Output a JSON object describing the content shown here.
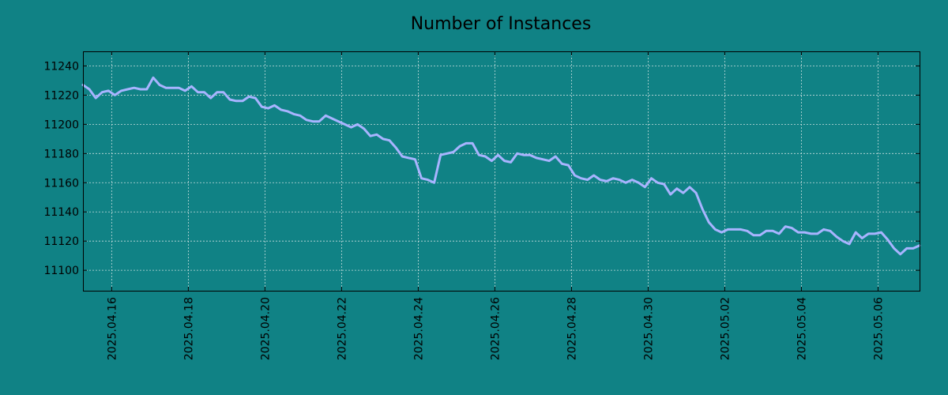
{
  "chart_data": {
    "type": "line",
    "title": "Number of Instances",
    "xlabel": "",
    "ylabel": "",
    "x_tick_labels": [
      "2025.04.16",
      "2025.04.18",
      "2025.04.20",
      "2025.04.22",
      "2025.04.24",
      "2025.04.26",
      "2025.04.28",
      "2025.04.30",
      "2025.05.02",
      "2025.05.04",
      "2025.05.06"
    ],
    "y_tick_labels": [
      "11100",
      "11120",
      "11140",
      "11160",
      "11180",
      "11200",
      "11220",
      "11240"
    ],
    "xlim": [
      "2025-04-15T06:00",
      "2025-05-07T02:00"
    ],
    "ylim": [
      11086,
      11250
    ],
    "grid": true,
    "colors": {
      "background": "#108285",
      "line": "#a8b4ff"
    },
    "series": [
      {
        "x": [
          "2025-04-15T06:00",
          "2025-04-15T10:00",
          "2025-04-15T14:00",
          "2025-04-15T18:00",
          "2025-04-15T22:00",
          "2025-04-16T02:00",
          "2025-04-16T06:00",
          "2025-04-16T10:00",
          "2025-04-16T14:00",
          "2025-04-16T18:00",
          "2025-04-16T22:00",
          "2025-04-17T02:00",
          "2025-04-17T06:00",
          "2025-04-17T10:00",
          "2025-04-17T14:00",
          "2025-04-17T18:00",
          "2025-04-17T22:00",
          "2025-04-18T02:00",
          "2025-04-18T06:00",
          "2025-04-18T10:00",
          "2025-04-18T14:00",
          "2025-04-18T18:00",
          "2025-04-18T22:00",
          "2025-04-19T02:00",
          "2025-04-19T06:00",
          "2025-04-19T10:00",
          "2025-04-19T14:00",
          "2025-04-19T18:00",
          "2025-04-19T22:00",
          "2025-04-20T02:00",
          "2025-04-20T06:00",
          "2025-04-20T10:00",
          "2025-04-20T14:00",
          "2025-04-20T18:00",
          "2025-04-20T22:00",
          "2025-04-21T02:00",
          "2025-04-21T06:00",
          "2025-04-21T10:00",
          "2025-04-21T14:00",
          "2025-04-21T18:00",
          "2025-04-21T22:00",
          "2025-04-22T02:00",
          "2025-04-22T06:00",
          "2025-04-22T10:00",
          "2025-04-22T14:00",
          "2025-04-22T18:00",
          "2025-04-22T22:00",
          "2025-04-23T02:00",
          "2025-04-23T06:00",
          "2025-04-23T10:00",
          "2025-04-23T14:00",
          "2025-04-23T18:00",
          "2025-04-23T22:00",
          "2025-04-24T02:00",
          "2025-04-24T06:00",
          "2025-04-24T10:00",
          "2025-04-24T14:00",
          "2025-04-24T18:00",
          "2025-04-24T22:00",
          "2025-04-25T02:00",
          "2025-04-25T06:00",
          "2025-04-25T10:00",
          "2025-04-25T14:00",
          "2025-04-25T18:00",
          "2025-04-25T22:00",
          "2025-04-26T02:00",
          "2025-04-26T06:00",
          "2025-04-26T10:00",
          "2025-04-26T14:00",
          "2025-04-26T18:00",
          "2025-04-26T22:00",
          "2025-04-27T02:00",
          "2025-04-27T06:00",
          "2025-04-27T10:00",
          "2025-04-27T14:00",
          "2025-04-27T18:00",
          "2025-04-27T22:00",
          "2025-04-28T02:00",
          "2025-04-28T06:00",
          "2025-04-28T10:00",
          "2025-04-28T14:00",
          "2025-04-28T18:00",
          "2025-04-28T22:00",
          "2025-04-29T02:00",
          "2025-04-29T06:00",
          "2025-04-29T10:00",
          "2025-04-29T14:00",
          "2025-04-29T18:00",
          "2025-04-29T22:00",
          "2025-04-30T02:00",
          "2025-04-30T06:00",
          "2025-04-30T10:00",
          "2025-04-30T14:00",
          "2025-04-30T18:00",
          "2025-04-30T22:00",
          "2025-05-01T02:00",
          "2025-05-01T06:00",
          "2025-05-01T10:00",
          "2025-05-01T14:00",
          "2025-05-01T18:00",
          "2025-05-01T22:00",
          "2025-05-02T02:00",
          "2025-05-02T06:00",
          "2025-05-02T10:00",
          "2025-05-02T14:00",
          "2025-05-02T18:00",
          "2025-05-02T22:00",
          "2025-05-03T02:00",
          "2025-05-03T06:00",
          "2025-05-03T10:00",
          "2025-05-03T14:00",
          "2025-05-03T18:00",
          "2025-05-03T22:00",
          "2025-05-04T02:00",
          "2025-05-04T06:00",
          "2025-05-04T10:00",
          "2025-05-04T14:00",
          "2025-05-04T18:00",
          "2025-05-04T22:00",
          "2025-05-05T02:00",
          "2025-05-05T06:00",
          "2025-05-05T10:00",
          "2025-05-05T14:00",
          "2025-05-05T18:00",
          "2025-05-05T22:00",
          "2025-05-06T02:00",
          "2025-05-06T06:00",
          "2025-05-06T10:00",
          "2025-05-06T14:00",
          "2025-05-06T18:00",
          "2025-05-06T22:00",
          "2025-05-07T02:00"
        ],
        "values": [
          11227,
          11224,
          11218,
          11222,
          11223,
          11220,
          11223,
          11224,
          11225,
          11224,
          11224,
          11232,
          11227,
          11225,
          11225,
          11225,
          11223,
          11226,
          11222,
          11222,
          11218,
          11222,
          11222,
          11217,
          11216,
          11216,
          11219,
          11218,
          11212,
          11211,
          11213,
          11210,
          11209,
          11207,
          11206,
          11203,
          11202,
          11202,
          11206,
          11204,
          11202,
          11200,
          11198,
          11200,
          11197,
          11192,
          11193,
          11190,
          11189,
          11184,
          11178,
          11177,
          11176,
          11163,
          11162,
          11160,
          11179,
          11180,
          11181,
          11185,
          11187,
          11187,
          11179,
          11178,
          11175,
          11179,
          11175,
          11174,
          11180,
          11179,
          11179,
          11177,
          11176,
          11175,
          11178,
          11173,
          11172,
          11165,
          11163,
          11162,
          11165,
          11162,
          11161,
          11163,
          11162,
          11160,
          11162,
          11160,
          11157,
          11163,
          11160,
          11159,
          11152,
          11156,
          11153,
          11157,
          11153,
          11142,
          11133,
          11128,
          11126,
          11128,
          11128,
          11128,
          11127,
          11124,
          11124,
          11127,
          11127,
          11125,
          11130,
          11129,
          11126,
          11126,
          11125,
          11125,
          11128,
          11127,
          11123,
          11120,
          11118,
          11126,
          11122,
          11125,
          11125,
          11126,
          11121,
          11115,
          11111,
          11115,
          11115,
          11117
        ]
      }
    ]
  }
}
